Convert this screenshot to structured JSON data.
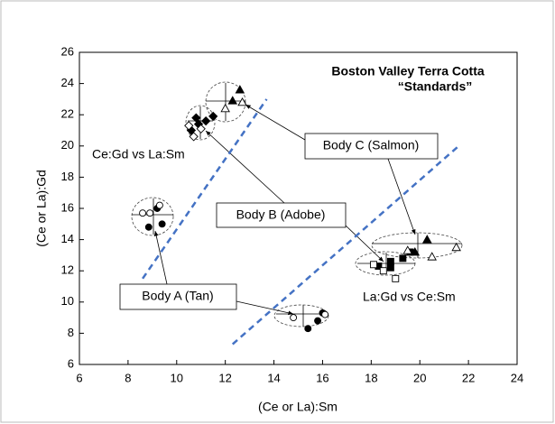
{
  "chart_data": {
    "type": "scatter",
    "title": "Boston Valley Terra Cotta",
    "subtitle": "“Standards”",
    "xlabel": "(Ce or La):Sm",
    "ylabel": "(Ce or La):Gd",
    "xlim": [
      6,
      24
    ],
    "xticks": [
      6,
      8,
      10,
      12,
      14,
      16,
      18,
      20,
      22,
      24
    ],
    "ylim": [
      6,
      26
    ],
    "yticks": [
      6,
      8,
      10,
      12,
      14,
      16,
      18,
      20,
      22,
      24,
      26
    ],
    "color": "#000000",
    "series": [
      {
        "marker": "circle",
        "filled": true,
        "x": [
          8.85,
          9.4,
          15.4,
          15.8,
          16.0,
          9.2
        ],
        "y": [
          14.8,
          15.0,
          8.3,
          8.8,
          9.3,
          16.0
        ]
      },
      {
        "marker": "circle",
        "filled": false,
        "x": [
          8.6,
          8.9,
          9.3,
          14.8,
          16.1
        ],
        "y": [
          15.7,
          15.7,
          16.2,
          9.0,
          9.2
        ]
      },
      {
        "marker": "diamond",
        "filled": true,
        "x": [
          10.6,
          10.9,
          11.2,
          11.5,
          10.8
        ],
        "y": [
          21.0,
          21.4,
          21.6,
          21.9,
          21.8
        ]
      },
      {
        "marker": "diamond",
        "filled": false,
        "x": [
          10.7,
          11.0,
          10.5
        ],
        "y": [
          20.6,
          21.1,
          21.3
        ]
      },
      {
        "marker": "square",
        "filled": true,
        "x": [
          18.3,
          18.8,
          19.3,
          18.8,
          19.6
        ],
        "y": [
          12.3,
          12.6,
          12.8,
          12.2,
          13.2
        ]
      },
      {
        "marker": "square",
        "filled": false,
        "x": [
          18.5,
          19.0,
          18.1
        ],
        "y": [
          12.0,
          11.5,
          12.4
        ]
      },
      {
        "marker": "triangle",
        "filled": true,
        "x": [
          12.6,
          12.3,
          20.3,
          19.8
        ],
        "y": [
          23.6,
          22.9,
          14.0,
          13.2
        ]
      },
      {
        "marker": "triangle",
        "filled": false,
        "x": [
          12.7,
          12.0,
          21.5,
          20.5,
          19.5
        ],
        "y": [
          22.8,
          22.4,
          13.5,
          12.9,
          13.3
        ]
      }
    ],
    "reference_lines": [
      {
        "color": "#4472c4",
        "x": [
          8.6,
          13.7
        ],
        "y": [
          11.5,
          23.0
        ]
      },
      {
        "color": "#4472c4",
        "x": [
          12.3,
          21.6
        ],
        "y": [
          7.3,
          20.0
        ]
      }
    ],
    "annotations": [
      "Ce:Gd vs La:Sm",
      "La:Gd vs Ce:Sm",
      "Body C (Salmon)",
      "Body B (Adobe)",
      "Body A (Tan)"
    ]
  }
}
